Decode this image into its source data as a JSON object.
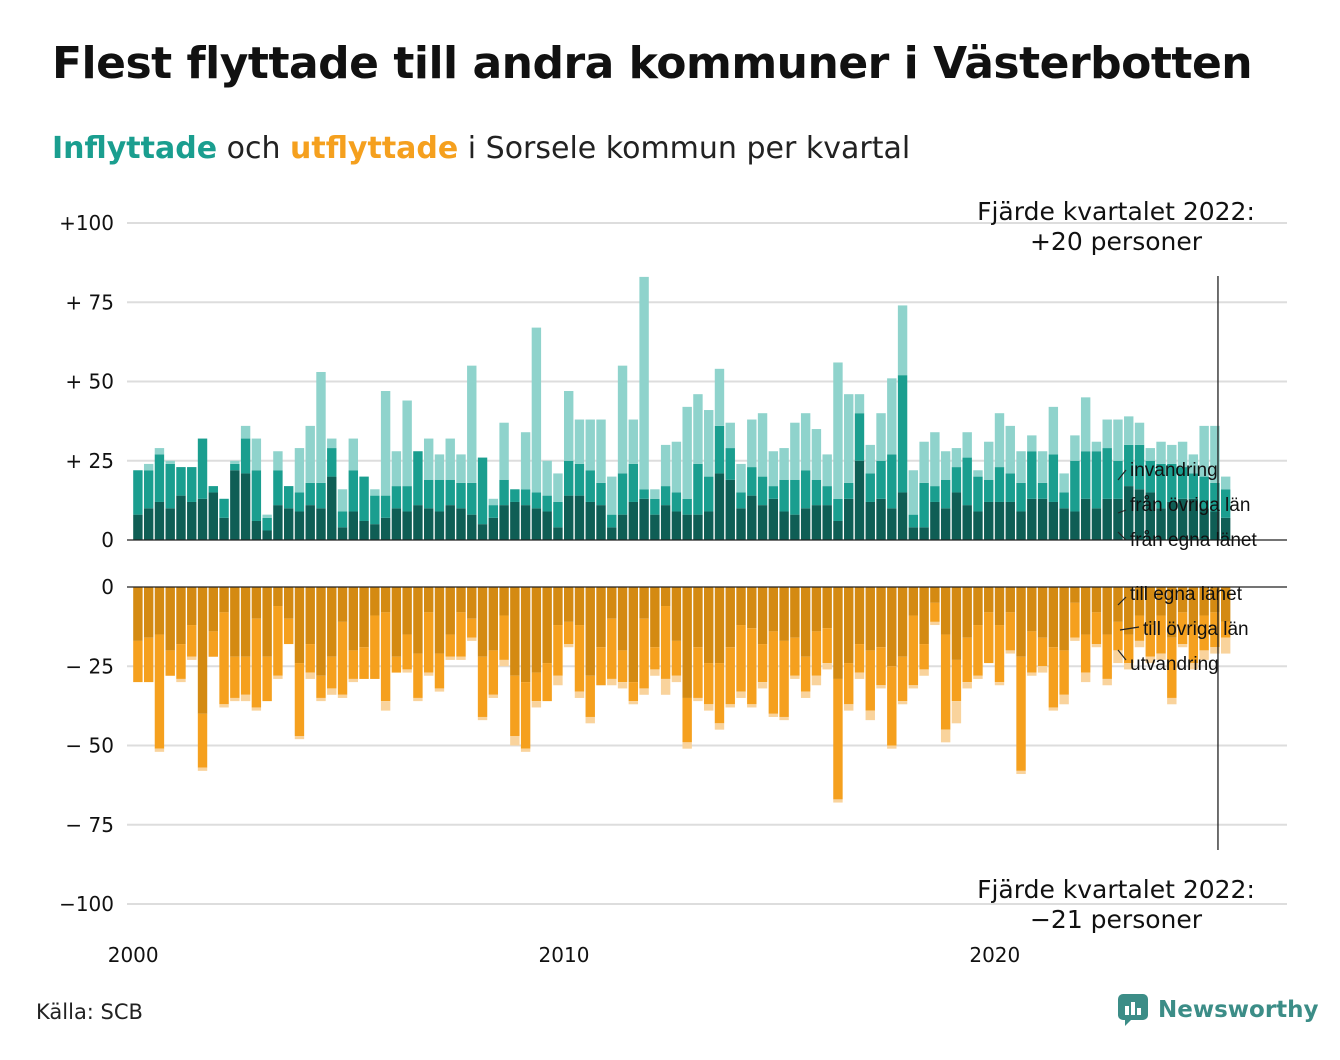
{
  "title": "Flest flyttade till andra kommuner i Västerbotten",
  "subtitle": {
    "part1": "Inflyttade",
    "part2": " och ",
    "part3": "utflyttade",
    "part4": " i Sorsele kommun per kvartal"
  },
  "source": "Källa: SCB",
  "logo": {
    "text": "Newsworthy",
    "icon": "newsworthy-logo-icon"
  },
  "colors": {
    "in_own": "#0f5e55",
    "in_other": "#1a9e8f",
    "in_imm": "#8fd3cc",
    "out_own": "#d48a12",
    "out_other": "#f5a01e",
    "out_emi": "#f9d39c",
    "grid": "#dddddd"
  },
  "chart_data": {
    "type": "bar",
    "stacked": true,
    "x_start": "2000 Q1",
    "x_ticks": [
      "2000",
      "2010",
      "2020"
    ],
    "y_ticks_top": [
      {
        "value": 100,
        "label": "+100"
      },
      {
        "value": 75,
        "label": "+ 75"
      },
      {
        "value": 50,
        "label": "+ 50"
      },
      {
        "value": 25,
        "label": "+ 25"
      },
      {
        "value": 0,
        "label": "0"
      }
    ],
    "y_ticks_bottom": [
      {
        "value": 0,
        "label": "0"
      },
      {
        "value": -25,
        "label": "− 25"
      },
      {
        "value": -50,
        "label": "− 50"
      },
      {
        "value": -75,
        "label": "− 75"
      },
      {
        "value": -100,
        "label": "−100"
      }
    ],
    "ylim_top": [
      0,
      100
    ],
    "ylim_bottom": [
      -100,
      0
    ],
    "annotations": {
      "top_line1": "Fjärde kvartalet 2022:",
      "top_line2": "+20 personer",
      "bottom_line1": "Fjärde kvartalet 2022:",
      "bottom_line2": "−21 personer"
    },
    "legend_in": [
      "invandring",
      "från övriga län",
      "från egna länet"
    ],
    "legend_out": [
      "till egna länet",
      "till övriga län",
      "utvandring"
    ],
    "in_series": [
      {
        "name": "från egna länet",
        "values": [
          8,
          10,
          12,
          10,
          14,
          12,
          13,
          15,
          7,
          22,
          21,
          6,
          3,
          11,
          10,
          9,
          11,
          10,
          20,
          4,
          9,
          6,
          5,
          7,
          10,
          9,
          11,
          10,
          9,
          11,
          10,
          8,
          5,
          7,
          11,
          12,
          11,
          10,
          9,
          4,
          14,
          14,
          12,
          11,
          4,
          8,
          12,
          13,
          8,
          11,
          9,
          8,
          8,
          9,
          21,
          19,
          10,
          14,
          11,
          13,
          9,
          8,
          10,
          11,
          11,
          6,
          13,
          25,
          12,
          13,
          10,
          15,
          4,
          4,
          12,
          10,
          15,
          11,
          9,
          12,
          12,
          12,
          9,
          13,
          13,
          12,
          10,
          9,
          13,
          10,
          13,
          13,
          17,
          16,
          15,
          10,
          12,
          13,
          13,
          10,
          9,
          7
        ]
      },
      {
        "name": "från övriga län",
        "values": [
          14,
          12,
          15,
          14,
          9,
          11,
          19,
          2,
          6,
          2,
          11,
          16,
          4,
          11,
          7,
          6,
          7,
          8,
          9,
          5,
          13,
          14,
          9,
          7,
          7,
          8,
          17,
          9,
          10,
          8,
          8,
          10,
          21,
          4,
          8,
          4,
          5,
          5,
          5,
          8,
          11,
          10,
          10,
          7,
          4,
          13,
          12,
          3,
          5,
          6,
          6,
          5,
          16,
          11,
          15,
          10,
          5,
          9,
          9,
          4,
          10,
          11,
          12,
          8,
          6,
          7,
          5,
          15,
          9,
          12,
          17,
          37,
          4,
          14,
          5,
          9,
          8,
          15,
          11,
          7,
          11,
          9,
          9,
          15,
          5,
          15,
          5,
          16,
          15,
          18,
          16,
          12,
          13,
          14,
          10,
          14,
          12,
          10,
          8,
          10,
          9,
          9
        ]
      },
      {
        "name": "invandring",
        "values": [
          0,
          2,
          2,
          1,
          0,
          0,
          0,
          0,
          0,
          1,
          4,
          10,
          1,
          6,
          0,
          14,
          18,
          35,
          3,
          7,
          10,
          0,
          2,
          33,
          11,
          27,
          0,
          13,
          8,
          13,
          9,
          37,
          0,
          2,
          18,
          0,
          18,
          52,
          11,
          9,
          22,
          14,
          16,
          20,
          12,
          34,
          14,
          67,
          3,
          13,
          16,
          29,
          22,
          21,
          18,
          8,
          9,
          15,
          20,
          11,
          10,
          18,
          18,
          16,
          10,
          43,
          28,
          6,
          9,
          15,
          24,
          22,
          14,
          13,
          17,
          9,
          6,
          8,
          2,
          12,
          17,
          15,
          10,
          5,
          10,
          15,
          6,
          8,
          17,
          3,
          9,
          13,
          9,
          7,
          4,
          7,
          6,
          8,
          6,
          16,
          18,
          4
        ]
      }
    ],
    "out_series": [
      {
        "name": "till egna länet",
        "values": [
          17,
          16,
          15,
          20,
          18,
          12,
          40,
          14,
          8,
          22,
          22,
          10,
          22,
          6,
          10,
          24,
          18,
          28,
          22,
          11,
          20,
          19,
          9,
          8,
          22,
          15,
          21,
          8,
          21,
          15,
          8,
          10,
          22,
          20,
          9,
          28,
          30,
          27,
          24,
          12,
          11,
          12,
          28,
          19,
          10,
          20,
          30,
          10,
          19,
          6,
          17,
          35,
          19,
          24,
          24,
          19,
          12,
          13,
          18,
          14,
          17,
          16,
          22,
          14,
          13,
          29,
          24,
          18,
          20,
          19,
          25,
          22,
          9,
          18,
          5,
          15,
          23,
          16,
          12,
          8,
          12,
          8,
          22,
          14,
          16,
          19,
          20,
          5,
          15,
          8,
          15,
          11,
          15,
          9,
          12,
          9,
          16,
          8,
          12,
          9,
          8,
          11
        ]
      },
      {
        "name": "till övriga län",
        "values": [
          13,
          14,
          36,
          8,
          11,
          10,
          17,
          8,
          29,
          13,
          12,
          28,
          14,
          22,
          8,
          23,
          9,
          7,
          10,
          23,
          9,
          10,
          20,
          28,
          5,
          11,
          14,
          19,
          11,
          7,
          14,
          6,
          19,
          14,
          14,
          19,
          21,
          9,
          12,
          16,
          7,
          21,
          13,
          12,
          19,
          10,
          6,
          22,
          7,
          23,
          11,
          14,
          16,
          13,
          19,
          18,
          21,
          24,
          12,
          26,
          24,
          12,
          11,
          14,
          11,
          38,
          13,
          9,
          19,
          12,
          25,
          14,
          22,
          8,
          6,
          30,
          13,
          14,
          16,
          16,
          18,
          12,
          36,
          13,
          9,
          19,
          14,
          11,
          12,
          10,
          14,
          9,
          9,
          8,
          10,
          12,
          19,
          10,
          12,
          11,
          11,
          5
        ]
      },
      {
        "name": "utvandring",
        "values": [
          0,
          0,
          1,
          0,
          1,
          1,
          1,
          0,
          1,
          1,
          2,
          1,
          0,
          1,
          0,
          1,
          2,
          1,
          2,
          1,
          1,
          0,
          0,
          3,
          0,
          1,
          1,
          1,
          1,
          1,
          1,
          1,
          1,
          1,
          2,
          3,
          1,
          2,
          0,
          3,
          1,
          2,
          2,
          0,
          2,
          2,
          1,
          2,
          2,
          5,
          2,
          2,
          1,
          2,
          2,
          1,
          2,
          1,
          2,
          1,
          1,
          1,
          2,
          3,
          2,
          1,
          2,
          2,
          3,
          1,
          1,
          1,
          1,
          2,
          1,
          4,
          7,
          2,
          1,
          0,
          1,
          1,
          1,
          1,
          2,
          1,
          3,
          1,
          3,
          1,
          2,
          4,
          2,
          2,
          2,
          2,
          2,
          1,
          2,
          3,
          2,
          5
        ]
      }
    ]
  }
}
